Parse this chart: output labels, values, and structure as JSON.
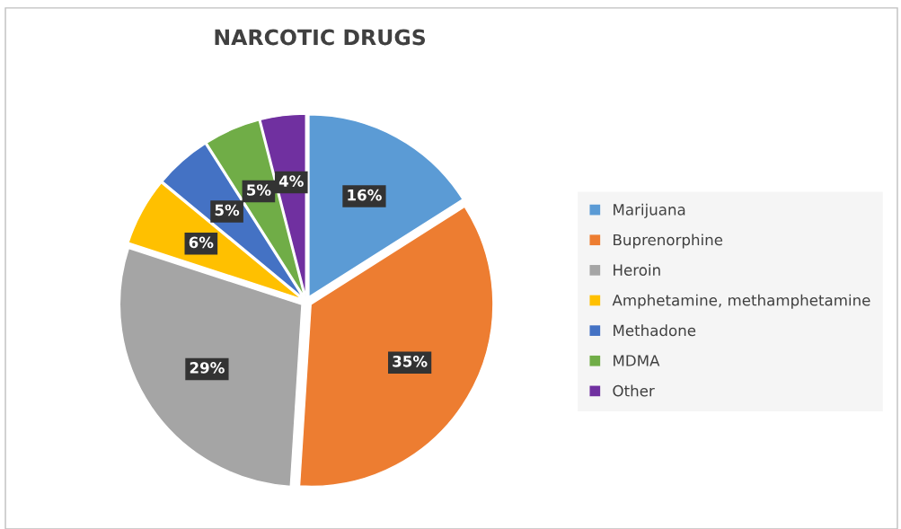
{
  "chart_data": {
    "type": "pie",
    "title": "NARCOTIC DRUGS",
    "categories": [
      "Marijuana",
      "Buprenorphine",
      "Heroin",
      "Amphetamine, methamphetamine",
      "Methadone",
      "MDMA",
      "Other"
    ],
    "values": [
      16,
      35,
      29,
      6,
      5,
      5,
      4
    ],
    "colors": [
      "#5b9bd5",
      "#ed7d31",
      "#a5a5a5",
      "#ffc000",
      "#4472c4",
      "#70ad47",
      "#7030a0"
    ],
    "value_labels": [
      "16%",
      "35%",
      "29%",
      "6%",
      "5%",
      "5%",
      "4%"
    ],
    "legend": "right"
  }
}
